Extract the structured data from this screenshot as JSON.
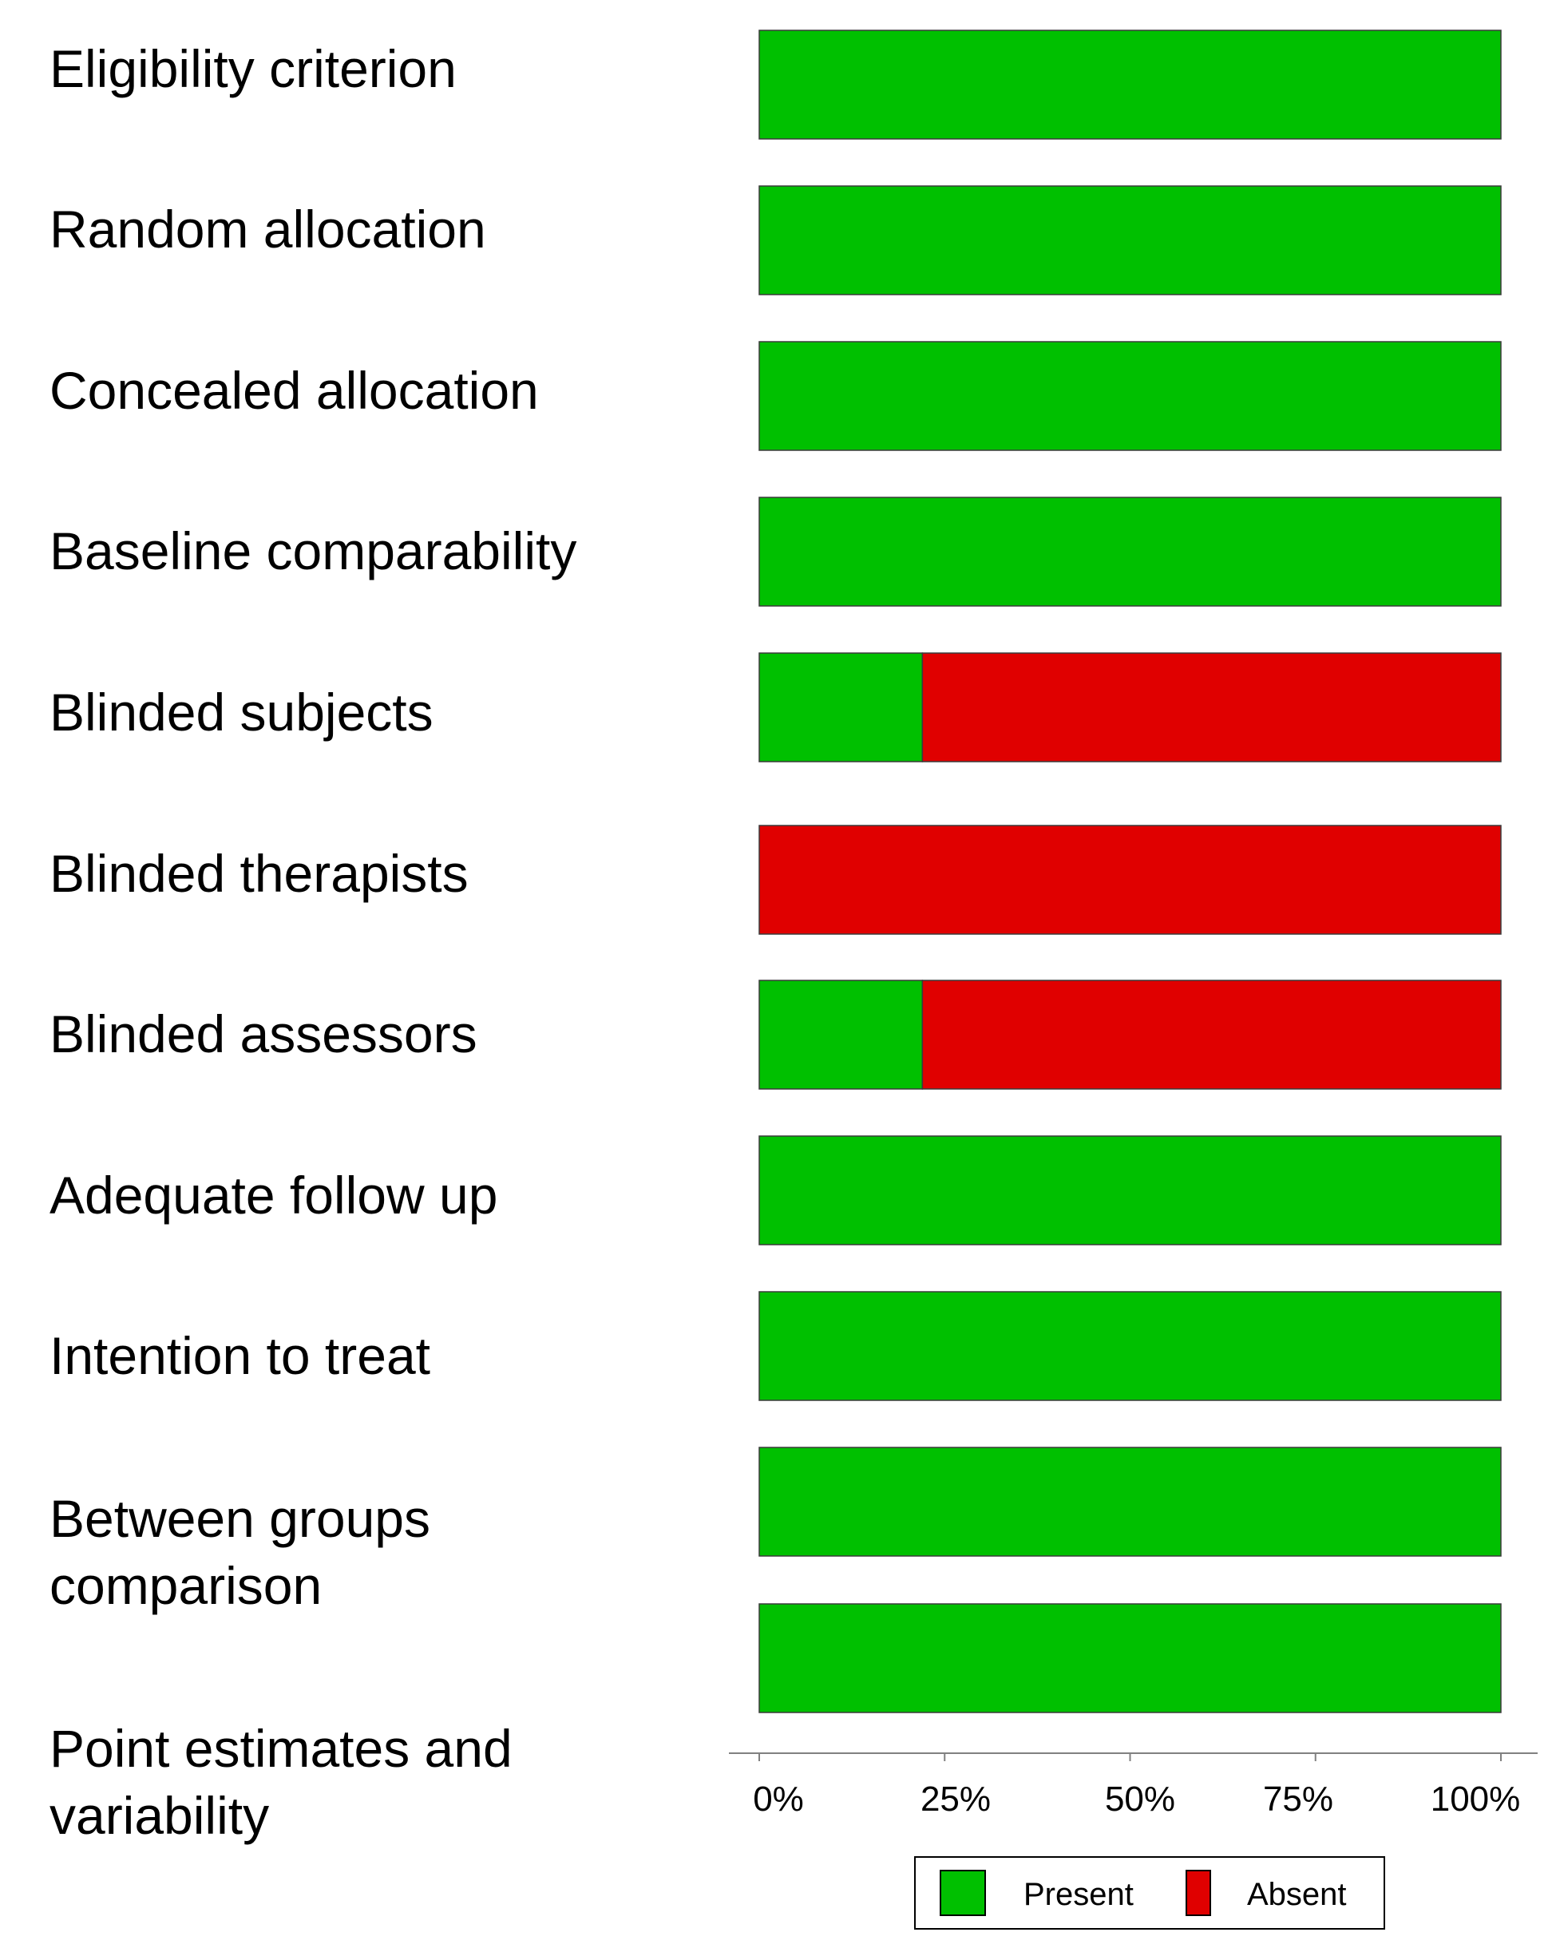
{
  "chart_data": {
    "type": "bar",
    "orientation": "horizontal",
    "stacked": true,
    "categories": [
      "Eligibility criterion",
      "Random allocation",
      "Concealed allocation",
      "Baseline comparability",
      "Blinded subjects",
      "Blinded therapists",
      "Blinded assessors",
      "Adequate follow up",
      "Intention to treat",
      "Between groups\ncomparison",
      "Point estimates and\nvariability"
    ],
    "series": [
      {
        "name": "Present",
        "color": "#00c000",
        "values": [
          100,
          100,
          100,
          100,
          22,
          0,
          22,
          100,
          100,
          100,
          100
        ]
      },
      {
        "name": "Absent",
        "color": "#e00000",
        "values": [
          0,
          0,
          0,
          0,
          78,
          100,
          78,
          0,
          0,
          0,
          0
        ]
      }
    ],
    "xlim": [
      0,
      100
    ],
    "xticks": [
      "0%",
      "25%",
      "50%",
      "75%",
      "100%"
    ],
    "title": "",
    "xlabel": "",
    "ylabel": "",
    "grid": false,
    "legend_position": "bottom"
  }
}
